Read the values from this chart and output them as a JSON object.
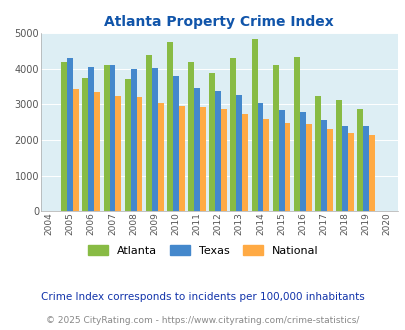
{
  "title": "Atlanta Property Crime Index",
  "years": [
    2004,
    2005,
    2006,
    2007,
    2008,
    2009,
    2010,
    2011,
    2012,
    2013,
    2014,
    2015,
    2016,
    2017,
    2018,
    2019,
    2020
  ],
  "atlanta": [
    null,
    4200,
    3750,
    4100,
    3700,
    4380,
    4750,
    4200,
    3870,
    4300,
    4820,
    4100,
    4320,
    3230,
    3130,
    2870,
    null
  ],
  "texas": [
    null,
    4300,
    4060,
    4100,
    3980,
    4010,
    3800,
    3470,
    3360,
    3250,
    3040,
    2830,
    2770,
    2560,
    2380,
    2380,
    null
  ],
  "national": [
    null,
    3440,
    3340,
    3240,
    3200,
    3040,
    2960,
    2920,
    2880,
    2720,
    2590,
    2470,
    2440,
    2320,
    2190,
    2130,
    null
  ],
  "atlanta_color": "#88bb44",
  "texas_color": "#4488cc",
  "national_color": "#ffaa44",
  "bg_color": "#ddeef4",
  "title_color": "#1155aa",
  "ylim": [
    0,
    5000
  ],
  "yticks": [
    0,
    1000,
    2000,
    3000,
    4000,
    5000
  ],
  "footnote1": "Crime Index corresponds to incidents per 100,000 inhabitants",
  "footnote2": "© 2025 CityRating.com - https://www.cityrating.com/crime-statistics/",
  "footnote1_color": "#1133aa",
  "footnote2_color": "#888888",
  "legend_labels": [
    "Atlanta",
    "Texas",
    "National"
  ]
}
